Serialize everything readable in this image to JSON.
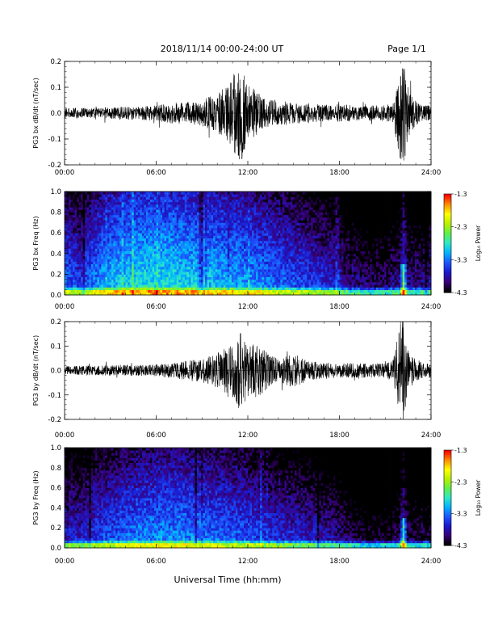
{
  "header": {
    "title": "2018/11/14  00:00-24:00 UT",
    "page": "Page 1/1"
  },
  "xlabel": "Universal Time (hh:mm)",
  "colors": {
    "trace": "#000000",
    "colormap": [
      "#000000",
      "#3a007a",
      "#1a1acc",
      "#1e55ff",
      "#00b4ff",
      "#2ee8c8",
      "#5ff04a",
      "#b8f000",
      "#ffff00",
      "#ff8c00",
      "#ff0000"
    ]
  },
  "chart_data": [
    {
      "type": "line",
      "name": "bx-derivative",
      "ylabel": "PG3 bx dB/dt (nT/sec)",
      "xlim": [
        0,
        24
      ],
      "ylim": [
        -0.2,
        0.2
      ],
      "x_ticks": [
        "00:00",
        "06:00",
        "12:00",
        "18:00",
        "24:00"
      ],
      "y_ticks": [
        "-0.2",
        "-0.1",
        "0.0",
        "0.1",
        "0.2"
      ],
      "y_tick_values": [
        -0.2,
        -0.1,
        0.0,
        0.1,
        0.2
      ],
      "envelope": {
        "x": [
          0,
          2,
          4,
          6,
          7,
          8,
          9,
          10,
          10.5,
          11,
          11.5,
          12,
          12.5,
          13,
          13.5,
          14,
          15,
          16,
          17,
          18,
          19,
          20,
          21,
          21.5,
          22,
          22.2,
          22.4,
          22.6,
          23,
          23.5,
          24
        ],
        "y": [
          0.02,
          0.02,
          0.025,
          0.03,
          0.04,
          0.045,
          0.05,
          0.08,
          0.1,
          0.14,
          0.2,
          0.12,
          0.09,
          0.06,
          0.05,
          0.05,
          0.04,
          0.04,
          0.035,
          0.035,
          0.03,
          0.03,
          0.03,
          0.04,
          0.2,
          0.2,
          0.15,
          0.08,
          0.05,
          0.03,
          0.03
        ]
      }
    },
    {
      "type": "heatmap",
      "name": "bx-spectrogram",
      "ylabel": "PG3 bx Freq (Hz)",
      "xlim": [
        0,
        24
      ],
      "ylim": [
        0,
        1.0
      ],
      "x_ticks": [
        "00:00",
        "06:00",
        "12:00",
        "18:00",
        "24:00"
      ],
      "y_ticks": [
        "0.0",
        "0.2",
        "0.4",
        "0.6",
        "0.8",
        "1.0"
      ],
      "y_tick_values": [
        0.0,
        0.2,
        0.4,
        0.6,
        0.8,
        1.0
      ],
      "colorbar": {
        "label": "Log₁₀ Power",
        "range": [
          -4.3,
          -1.3
        ],
        "ticks": [
          "-1.3",
          "-2.3",
          "-3.3",
          "-4.3"
        ],
        "tick_values": [
          -1.3,
          -2.3,
          -3.3,
          -4.3
        ]
      },
      "level_profile": {
        "x": [
          0,
          1,
          2,
          3,
          4,
          6,
          8,
          10,
          12,
          14,
          16,
          18,
          19,
          20,
          21,
          22,
          23,
          24
        ],
        "y": [
          -3.3,
          -3.5,
          -3.2,
          -3.0,
          -2.9,
          -2.8,
          -2.9,
          -3.0,
          -3.1,
          -3.3,
          -3.5,
          -3.7,
          -3.9,
          -4.0,
          -4.0,
          -3.8,
          -3.9,
          -3.9
        ]
      },
      "peak_hour": 22.2
    },
    {
      "type": "line",
      "name": "by-derivative",
      "ylabel": "PG3 by dB/dt (nT/sec)",
      "xlim": [
        0,
        24
      ],
      "ylim": [
        -0.2,
        0.2
      ],
      "x_ticks": [
        "00:00",
        "06:00",
        "12:00",
        "18:00",
        "24:00"
      ],
      "y_ticks": [
        "-0.2",
        "-0.1",
        "0.0",
        "0.1",
        "0.2"
      ],
      "y_tick_values": [
        -0.2,
        -0.1,
        0.0,
        0.1,
        0.2
      ],
      "envelope": {
        "x": [
          0,
          2,
          4,
          6,
          7,
          8,
          9,
          10,
          10.5,
          11,
          11.5,
          12,
          12.5,
          13,
          13.5,
          14,
          15,
          16,
          17,
          18,
          19,
          20,
          21,
          21.5,
          22,
          22.2,
          22.4,
          22.6,
          23,
          23.5,
          24
        ],
        "y": [
          0.018,
          0.02,
          0.022,
          0.025,
          0.03,
          0.04,
          0.05,
          0.07,
          0.09,
          0.12,
          0.17,
          0.12,
          0.11,
          0.1,
          0.06,
          0.05,
          0.07,
          0.04,
          0.035,
          0.03,
          0.03,
          0.03,
          0.03,
          0.04,
          0.2,
          0.2,
          0.15,
          0.08,
          0.05,
          0.03,
          0.03
        ]
      }
    },
    {
      "type": "heatmap",
      "name": "by-spectrogram",
      "ylabel": "PG3 by Freq (Hz)",
      "xlim": [
        0,
        24
      ],
      "ylim": [
        0,
        1.0
      ],
      "x_ticks": [
        "00:00",
        "06:00",
        "12:00",
        "18:00",
        "24:00"
      ],
      "y_ticks": [
        "0.0",
        "0.2",
        "0.4",
        "0.6",
        "0.8",
        "1.0"
      ],
      "y_tick_values": [
        0.0,
        0.2,
        0.4,
        0.6,
        0.8,
        1.0
      ],
      "colorbar": {
        "label": "Log₁₀ Power",
        "range": [
          -4.3,
          -1.3
        ],
        "ticks": [
          "-1.3",
          "-2.3",
          "-3.3",
          "-4.3"
        ],
        "tick_values": [
          -1.3,
          -2.3,
          -3.3,
          -4.3
        ]
      },
      "level_profile": {
        "x": [
          0,
          1,
          2,
          3,
          4,
          6,
          8,
          10,
          12,
          14,
          16,
          18,
          19,
          20,
          21,
          22,
          23,
          24
        ],
        "y": [
          -3.6,
          -3.7,
          -3.5,
          -3.4,
          -3.3,
          -3.2,
          -3.2,
          -3.3,
          -3.4,
          -3.6,
          -3.7,
          -3.9,
          -4.1,
          -4.2,
          -4.2,
          -4.0,
          -4.1,
          -4.1
        ]
      },
      "peak_hour": 22.2
    }
  ]
}
